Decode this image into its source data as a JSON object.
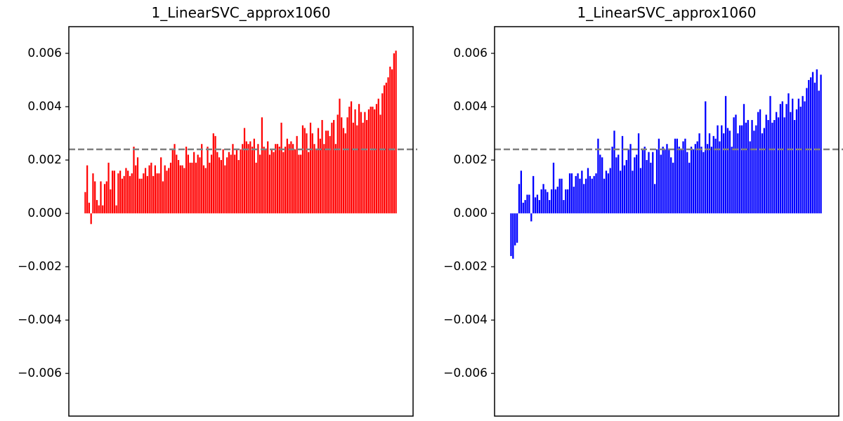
{
  "chart_data": [
    {
      "type": "bar",
      "title": "1_LinearSVC_approx1060",
      "xlabel": "",
      "ylabel": "",
      "color": "#ff0000",
      "ylim": [
        -0.0076,
        0.007
      ],
      "yticks": [
        -0.006,
        -0.004,
        -0.002,
        0.0,
        0.002,
        0.004,
        0.006
      ],
      "ytick_labels": [
        "−0.006",
        "−0.004",
        "−0.002",
        "0.000",
        "0.002",
        "0.004",
        "0.006"
      ],
      "x_ticks_visible": false,
      "reference_line": {
        "value": 0.0024,
        "style": "dashed",
        "color": "#808080"
      },
      "values": [
        0.0008,
        0.0018,
        0.0004,
        -0.0004,
        0.0015,
        0.0012,
        0.0005,
        0.0003,
        0.0012,
        0.0003,
        0.0011,
        0.0012,
        0.0019,
        0.0009,
        0.0016,
        0.0016,
        0.0003,
        0.0015,
        0.0016,
        0.0013,
        0.0014,
        0.0017,
        0.0016,
        0.0014,
        0.0015,
        0.0025,
        0.0018,
        0.0021,
        0.0013,
        0.0013,
        0.0015,
        0.0017,
        0.0014,
        0.0018,
        0.0019,
        0.0014,
        0.0018,
        0.0015,
        0.0015,
        0.0021,
        0.0012,
        0.0018,
        0.0016,
        0.0017,
        0.0019,
        0.0024,
        0.0026,
        0.0022,
        0.002,
        0.0018,
        0.0018,
        0.0017,
        0.0025,
        0.0022,
        0.0019,
        0.0019,
        0.0023,
        0.0019,
        0.0022,
        0.0021,
        0.0026,
        0.0018,
        0.0017,
        0.0025,
        0.0019,
        0.0022,
        0.003,
        0.0029,
        0.0023,
        0.0021,
        0.002,
        0.0024,
        0.0018,
        0.0021,
        0.0023,
        0.0022,
        0.0026,
        0.0022,
        0.0024,
        0.002,
        0.0024,
        0.0026,
        0.0032,
        0.0027,
        0.0026,
        0.0027,
        0.0025,
        0.0028,
        0.0019,
        0.0026,
        0.0022,
        0.0036,
        0.0025,
        0.0024,
        0.0027,
        0.0022,
        0.0024,
        0.0023,
        0.0026,
        0.0026,
        0.0025,
        0.0034,
        0.0023,
        0.0025,
        0.0028,
        0.0026,
        0.0027,
        0.0026,
        0.0024,
        0.0029,
        0.0022,
        0.0022,
        0.0033,
        0.0032,
        0.003,
        0.0023,
        0.0034,
        0.003,
        0.0026,
        0.0024,
        0.0032,
        0.0028,
        0.0035,
        0.0026,
        0.0031,
        0.0031,
        0.0029,
        0.0034,
        0.0035,
        0.0026,
        0.0037,
        0.0043,
        0.0036,
        0.0032,
        0.003,
        0.0036,
        0.004,
        0.0042,
        0.0034,
        0.0039,
        0.0033,
        0.0041,
        0.0038,
        0.0034,
        0.0038,
        0.0035,
        0.0039,
        0.004,
        0.004,
        0.0039,
        0.0041,
        0.0043,
        0.0037,
        0.0045,
        0.0048,
        0.0049,
        0.0051,
        0.0055,
        0.0054,
        0.006,
        0.0061
      ]
    },
    {
      "type": "bar",
      "title": "1_LinearSVC_approx1060",
      "xlabel": "",
      "ylabel": "",
      "color": "#0000ff",
      "ylim": [
        -0.0076,
        0.007
      ],
      "yticks": [
        -0.006,
        -0.004,
        -0.002,
        0.0,
        0.002,
        0.004,
        0.006
      ],
      "ytick_labels": [
        "−0.006",
        "−0.004",
        "−0.002",
        "0.000",
        "0.002",
        "0.004",
        "0.006"
      ],
      "x_ticks_visible": false,
      "reference_line": {
        "value": 0.0024,
        "style": "dashed",
        "color": "#808080"
      },
      "values": [
        -0.0016,
        -0.0017,
        -0.0012,
        -0.0011,
        0.0011,
        0.0016,
        0.0004,
        0.0005,
        0.0007,
        0.0007,
        -0.0003,
        0.0014,
        0.0006,
        0.0007,
        0.0005,
        0.0009,
        0.0011,
        0.0009,
        0.0008,
        0.0005,
        0.0009,
        0.0019,
        0.0009,
        0.001,
        0.0013,
        0.0013,
        0.0005,
        0.0009,
        0.0009,
        0.0015,
        0.0015,
        0.001,
        0.0014,
        0.0015,
        0.0013,
        0.0016,
        0.0011,
        0.0013,
        0.0017,
        0.0014,
        0.0013,
        0.0014,
        0.0015,
        0.0028,
        0.0022,
        0.0021,
        0.0013,
        0.0016,
        0.0015,
        0.0017,
        0.0025,
        0.0031,
        0.0021,
        0.0022,
        0.0016,
        0.0029,
        0.0018,
        0.002,
        0.0024,
        0.0026,
        0.0016,
        0.0021,
        0.0022,
        0.003,
        0.0017,
        0.0024,
        0.0025,
        0.002,
        0.0023,
        0.0019,
        0.0023,
        0.0011,
        0.0024,
        0.0028,
        0.0022,
        0.0025,
        0.0024,
        0.0026,
        0.0024,
        0.0021,
        0.0019,
        0.0028,
        0.0028,
        0.0025,
        0.0024,
        0.0027,
        0.0028,
        0.0023,
        0.0019,
        0.0025,
        0.0024,
        0.0026,
        0.0027,
        0.003,
        0.0025,
        0.0023,
        0.0042,
        0.0026,
        0.003,
        0.0025,
        0.0029,
        0.0028,
        0.0033,
        0.0027,
        0.0033,
        0.003,
        0.0044,
        0.0032,
        0.0031,
        0.0025,
        0.0036,
        0.0037,
        0.003,
        0.0033,
        0.0033,
        0.0041,
        0.0034,
        0.0035,
        0.0027,
        0.0035,
        0.0031,
        0.0033,
        0.0038,
        0.0039,
        0.003,
        0.0032,
        0.0037,
        0.0035,
        0.0044,
        0.0034,
        0.0035,
        0.0038,
        0.0036,
        0.0041,
        0.0042,
        0.0036,
        0.0041,
        0.0045,
        0.0038,
        0.0043,
        0.0035,
        0.0039,
        0.0043,
        0.004,
        0.0044,
        0.0042,
        0.0047,
        0.005,
        0.0051,
        0.0053,
        0.0049,
        0.0054,
        0.0046,
        0.0052
      ]
    }
  ]
}
